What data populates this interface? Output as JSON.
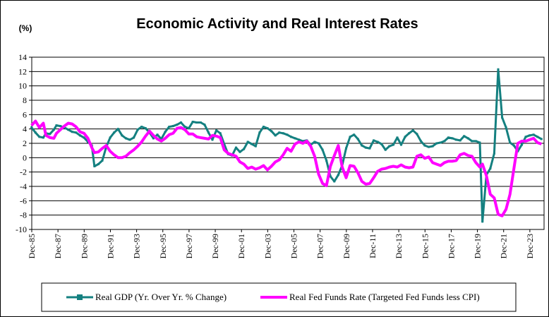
{
  "chart_data": {
    "type": "line",
    "title": "Economic Activity and Real Interest Rates",
    "unit_label": "(%)",
    "ylim": [
      -10,
      14
    ],
    "yticks": [
      14,
      12,
      10,
      8,
      6,
      4,
      2,
      0,
      -2,
      -4,
      -6,
      -8,
      -10
    ],
    "xlim": [
      1985.917,
      2025.0
    ],
    "xticks": [
      "Dec-85",
      "Dec-87",
      "Dec-89",
      "Dec-91",
      "Dec-93",
      "Dec-95",
      "Dec-97",
      "Dec-99",
      "Dec-01",
      "Dec-03",
      "Dec-05",
      "Dec-07",
      "Dec-09",
      "Dec-11",
      "Dec-13",
      "Dec-15",
      "Dec-17",
      "Dec-19",
      "Dec-21",
      "Dec-23"
    ],
    "grid": true,
    "legend_position": "bottom",
    "series": [
      {
        "name": "Real GDP (Yr. Over Yr. % Change)",
        "color": "#148080",
        "marker": "square",
        "x": [
          1985.9,
          1986.2,
          1986.5,
          1986.8,
          1987.0,
          1987.3,
          1987.6,
          1987.8,
          1988.1,
          1988.4,
          1988.7,
          1989.0,
          1989.3,
          1989.6,
          1989.9,
          1990.2,
          1990.5,
          1990.7,
          1991.0,
          1991.3,
          1991.6,
          1991.9,
          1992.2,
          1992.5,
          1992.8,
          1993.1,
          1993.4,
          1993.7,
          1994.0,
          1994.3,
          1994.6,
          1994.9,
          1995.2,
          1995.5,
          1995.8,
          1996.1,
          1996.4,
          1996.7,
          1997.0,
          1997.3,
          1997.6,
          1997.9,
          1998.2,
          1998.5,
          1998.8,
          1999.1,
          1999.4,
          1999.7,
          2000.0,
          2000.3,
          2000.6,
          2000.9,
          2001.2,
          2001.5,
          2001.8,
          2002.1,
          2002.4,
          2002.7,
          2003.0,
          2003.3,
          2003.6,
          2003.9,
          2004.2,
          2004.5,
          2004.8,
          2005.1,
          2005.4,
          2005.7,
          2006.0,
          2006.3,
          2006.6,
          2006.9,
          2007.2,
          2007.5,
          2007.8,
          2008.1,
          2008.4,
          2008.7,
          2009.0,
          2009.3,
          2009.6,
          2009.9,
          2010.2,
          2010.5,
          2010.8,
          2011.1,
          2011.4,
          2011.7,
          2012.0,
          2012.3,
          2012.6,
          2012.9,
          2013.2,
          2013.5,
          2013.8,
          2014.1,
          2014.4,
          2014.7,
          2015.0,
          2015.3,
          2015.6,
          2015.9,
          2016.2,
          2016.5,
          2016.8,
          2017.1,
          2017.4,
          2017.7,
          2018.0,
          2018.3,
          2018.6,
          2018.9,
          2019.2,
          2019.5,
          2019.8,
          2020.1,
          2020.3,
          2020.6,
          2020.9,
          2021.2,
          2021.5,
          2021.8,
          2022.1,
          2022.4,
          2022.7,
          2023.0,
          2023.3,
          2023.6,
          2023.9,
          2024.2,
          2024.5,
          2024.8
        ],
        "values": [
          4.2,
          3.5,
          2.9,
          2.8,
          3.4,
          3.3,
          3.9,
          4.5,
          4.4,
          4.2,
          3.9,
          3.6,
          3.5,
          3.1,
          2.8,
          2.2,
          1.7,
          -1.2,
          -0.9,
          -0.4,
          1.5,
          2.8,
          3.5,
          4.0,
          3.1,
          2.7,
          2.5,
          2.8,
          3.9,
          4.3,
          4.1,
          3.5,
          2.7,
          3.2,
          2.6,
          3.6,
          4.3,
          4.4,
          4.6,
          4.9,
          4.3,
          4.1,
          5.0,
          4.9,
          4.9,
          4.6,
          3.5,
          2.5,
          3.8,
          3.4,
          1.9,
          0.5,
          0.3,
          1.4,
          0.8,
          1.2,
          2.2,
          1.9,
          1.6,
          3.5,
          4.3,
          4.1,
          3.7,
          3.1,
          3.5,
          3.4,
          3.2,
          2.9,
          2.7,
          2.5,
          2.3,
          2.4,
          1.8,
          2.2,
          2.0,
          1.1,
          -0.4,
          -2.6,
          -3.3,
          -2.4,
          -1.1,
          1.3,
          2.9,
          3.2,
          2.6,
          1.7,
          1.4,
          1.3,
          2.4,
          2.2,
          1.9,
          1.1,
          1.6,
          1.8,
          2.8,
          1.8,
          2.9,
          3.4,
          3.8,
          3.3,
          2.3,
          1.7,
          1.5,
          1.6,
          2.0,
          2.1,
          2.3,
          2.8,
          2.7,
          2.5,
          2.4,
          3.0,
          2.7,
          2.3,
          2.3,
          2.1,
          -8.9,
          -2.4,
          -1.5,
          0.6,
          12.3,
          5.6,
          4.2,
          2.1,
          1.7,
          0.9,
          1.8,
          2.9,
          3.1,
          3.2,
          2.9,
          2.6
        ]
      },
      {
        "name": "Real Fed Funds Rate (Targeted Fed Funds less CPI)",
        "color": "#ff00ff",
        "marker": "none",
        "x": [
          1985.9,
          1986.2,
          1986.5,
          1986.8,
          1987.0,
          1987.3,
          1987.6,
          1987.8,
          1988.1,
          1988.4,
          1988.7,
          1989.0,
          1989.3,
          1989.6,
          1989.9,
          1990.2,
          1990.5,
          1990.7,
          1991.0,
          1991.3,
          1991.6,
          1991.9,
          1992.2,
          1992.5,
          1992.8,
          1993.1,
          1993.4,
          1993.7,
          1994.0,
          1994.3,
          1994.6,
          1994.9,
          1995.2,
          1995.5,
          1995.8,
          1996.1,
          1996.4,
          1996.7,
          1997.0,
          1997.3,
          1997.6,
          1997.9,
          1998.2,
          1998.5,
          1998.8,
          1999.1,
          1999.4,
          1999.7,
          2000.0,
          2000.3,
          2000.6,
          2000.9,
          2001.2,
          2001.5,
          2001.8,
          2002.1,
          2002.4,
          2002.7,
          2003.0,
          2003.3,
          2003.6,
          2003.9,
          2004.2,
          2004.5,
          2004.8,
          2005.1,
          2005.4,
          2005.7,
          2006.0,
          2006.3,
          2006.6,
          2006.9,
          2007.2,
          2007.5,
          2007.8,
          2008.1,
          2008.4,
          2008.7,
          2009.0,
          2009.3,
          2009.6,
          2009.9,
          2010.2,
          2010.5,
          2010.8,
          2011.1,
          2011.4,
          2011.7,
          2012.0,
          2012.3,
          2012.6,
          2012.9,
          2013.2,
          2013.5,
          2013.8,
          2014.1,
          2014.4,
          2014.7,
          2015.0,
          2015.3,
          2015.6,
          2015.9,
          2016.2,
          2016.5,
          2016.8,
          2017.1,
          2017.4,
          2017.7,
          2018.0,
          2018.3,
          2018.6,
          2018.9,
          2019.2,
          2019.5,
          2019.8,
          2020.1,
          2020.3,
          2020.6,
          2020.9,
          2021.2,
          2021.5,
          2021.8,
          2022.1,
          2022.4,
          2022.7,
          2023.0,
          2023.3,
          2023.6,
          2023.9,
          2024.2,
          2024.5,
          2024.8
        ],
        "values": [
          4.5,
          5.1,
          4.2,
          4.8,
          3.1,
          2.8,
          2.7,
          3.4,
          3.9,
          4.4,
          4.8,
          4.7,
          4.3,
          3.6,
          3.4,
          2.7,
          1.4,
          0.7,
          0.8,
          1.3,
          1.7,
          0.9,
          0.4,
          0.0,
          0.0,
          0.2,
          0.7,
          1.1,
          1.6,
          2.2,
          3.0,
          3.7,
          3.1,
          2.6,
          2.3,
          2.7,
          3.2,
          3.4,
          4.1,
          4.2,
          3.9,
          3.3,
          3.3,
          2.9,
          2.8,
          2.7,
          2.6,
          3.1,
          3.0,
          2.8,
          1.1,
          0.6,
          0.4,
          0.2,
          -0.6,
          -0.9,
          -1.5,
          -1.3,
          -1.6,
          -1.4,
          -1.1,
          -1.7,
          -1.2,
          -0.6,
          -0.3,
          0.4,
          1.3,
          0.9,
          1.9,
          2.2,
          2.0,
          2.3,
          1.6,
          0.2,
          -2.3,
          -3.6,
          -3.9,
          -1.2,
          0.3,
          1.7,
          -1.3,
          -2.8,
          -1.1,
          -1.2,
          -2.1,
          -3.3,
          -3.7,
          -3.6,
          -2.8,
          -1.9,
          -1.6,
          -1.5,
          -1.3,
          -1.2,
          -1.3,
          -1.0,
          -1.3,
          -1.4,
          -1.3,
          0.2,
          0.4,
          -0.1,
          0.1,
          -0.7,
          -0.9,
          -1.1,
          -0.7,
          -0.5,
          -0.5,
          -0.4,
          0.4,
          0.6,
          0.3,
          0.2,
          -0.7,
          -1.3,
          -0.9,
          -2.5,
          -5.1,
          -5.6,
          -7.9,
          -8.1,
          -7.2,
          -5.1,
          -1.5,
          2.0,
          2.3,
          2.3,
          2.5,
          2.7,
          2.1,
          1.9
        ]
      }
    ]
  }
}
